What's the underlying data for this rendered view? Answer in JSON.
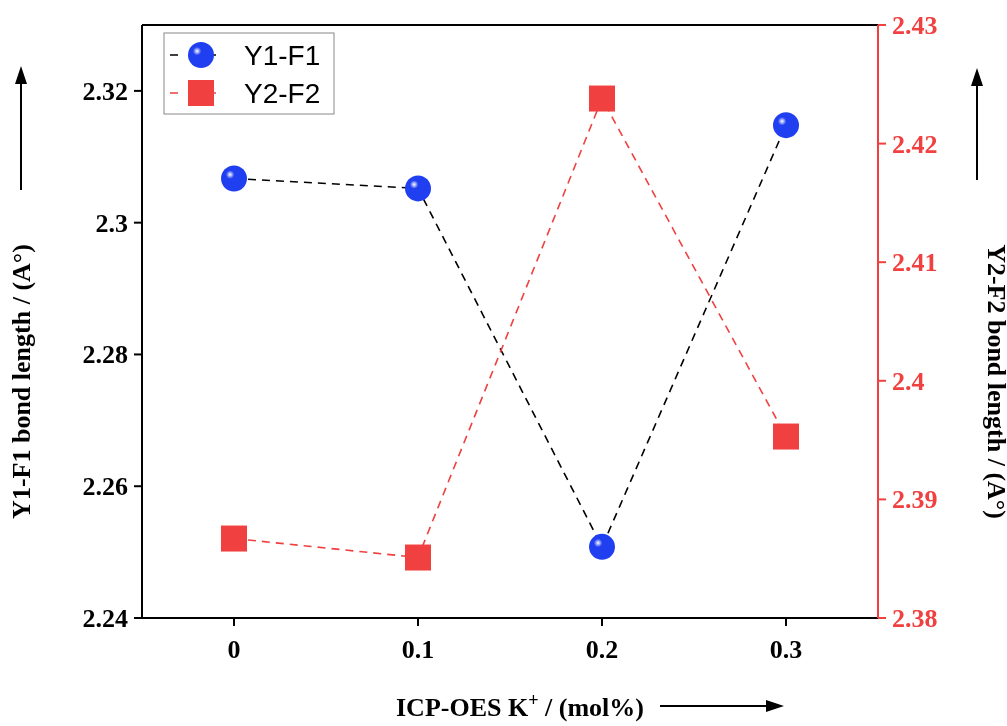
{
  "chart_data": {
    "type": "line",
    "xlabel": "ICP-OES K$^{+}$ / (mol%)",
    "ylabel": "Y1-F1 bond length / (A°)",
    "y2label": "Y2-F2 bond length / (A°)",
    "x": [
      0,
      0.1,
      0.2,
      0.3
    ],
    "xlim": [
      -0.05,
      0.35
    ],
    "xticks": [
      0,
      0.1,
      0.2,
      0.3
    ],
    "ylim": [
      2.24,
      2.33
    ],
    "yticks": [
      2.24,
      2.26,
      2.28,
      2.3,
      2.32
    ],
    "y2lim": [
      2.38,
      2.43
    ],
    "y2ticks": [
      2.38,
      2.39,
      2.4,
      2.41,
      2.42,
      2.43
    ],
    "line_style": "dashed",
    "legend": "top left",
    "grid": false,
    "series": [
      {
        "name": "Y1-F1",
        "color": "#1f3ff0",
        "marker": "circle",
        "values": [
          2.3067,
          2.3052,
          2.2508,
          2.3148
        ]
      },
      {
        "name": "Y2-F2",
        "color": "#f04040",
        "marker": "square",
        "axis": "y2",
        "values": [
          2.3867,
          2.3851,
          2.4238,
          2.3953
        ]
      }
    ]
  }
}
